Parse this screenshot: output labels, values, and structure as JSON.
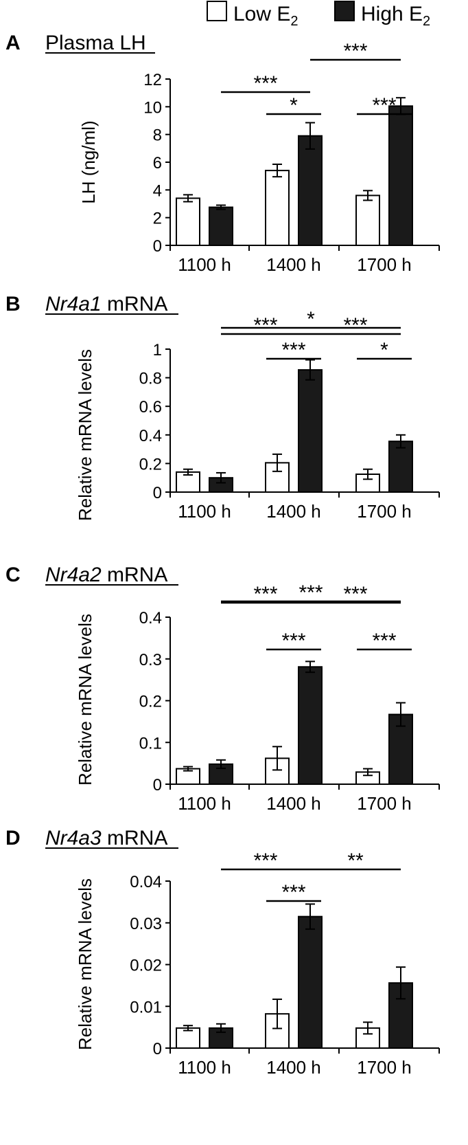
{
  "legend": {
    "low_label": "Low E",
    "high_label": "High E",
    "subscript": "2",
    "low_color": "#ffffff",
    "high_color": "#1a1a1a"
  },
  "chart_data": [
    {
      "type": "bar",
      "panel_letter": "A",
      "title": "Plasma LH",
      "title_gene": "",
      "ylabel": "LH (ng/ml)",
      "ylim": [
        0,
        12
      ],
      "yticks": [
        "0",
        "2",
        "4",
        "6",
        "8",
        "10",
        "12"
      ],
      "categories": [
        "1100 h",
        "1400 h",
        "1700 h"
      ],
      "series": [
        {
          "name": "Low E2",
          "values": [
            3.4,
            5.4,
            3.6
          ],
          "errors": [
            0.25,
            0.45,
            0.35
          ]
        },
        {
          "name": "High E2",
          "values": [
            2.75,
            7.9,
            10.05
          ],
          "errors": [
            0.15,
            0.95,
            0.6
          ]
        }
      ],
      "significance": [
        {
          "label": "***",
          "from": "1400 h High E2",
          "to": "1700 h High E2",
          "level": "top"
        },
        {
          "label": "***",
          "from": "1100 h High E2",
          "to": "1400 h High E2",
          "level": "middle"
        },
        {
          "label": "*",
          "from": "1400 h Low E2",
          "to": "1400 h High E2",
          "level": "pair"
        },
        {
          "label": "***",
          "from": "1700 h Low E2",
          "to": "1700 h High E2",
          "level": "pair"
        }
      ]
    },
    {
      "type": "bar",
      "panel_letter": "B",
      "title": " mRNA",
      "title_gene": "Nr4a1",
      "ylabel": "Relative mRNA levels",
      "ylim": [
        0,
        1
      ],
      "yticks": [
        "0",
        "0.2",
        "0.4",
        "0.6",
        "0.8",
        "1"
      ],
      "categories": [
        "1100 h",
        "1400 h",
        "1700 h"
      ],
      "series": [
        {
          "name": "Low E2",
          "values": [
            0.14,
            0.205,
            0.125
          ],
          "errors": [
            0.02,
            0.06,
            0.035
          ]
        },
        {
          "name": "High E2",
          "values": [
            0.1,
            0.855,
            0.355
          ],
          "errors": [
            0.035,
            0.07,
            0.045
          ]
        }
      ],
      "significance": [
        {
          "label": "*",
          "from": "1100 h High E2",
          "to": "1700 h High E2",
          "level": "top"
        },
        {
          "label": "***",
          "from": "1100 h High E2",
          "to": "1400 h High E2",
          "level": "middle"
        },
        {
          "label": "***",
          "from": "1400 h High E2",
          "to": "1700 h High E2",
          "level": "middle"
        },
        {
          "label": "***",
          "from": "1400 h Low E2",
          "to": "1400 h High E2",
          "level": "pair"
        },
        {
          "label": "*",
          "from": "1700 h Low E2",
          "to": "1700 h High E2",
          "level": "pair"
        }
      ]
    },
    {
      "type": "bar",
      "panel_letter": "C",
      "title": " mRNA",
      "title_gene": "Nr4a2",
      "ylabel": "Relative mRNA levels",
      "ylim": [
        0,
        0.4
      ],
      "yticks": [
        "0",
        "0.1",
        "0.2",
        "0.3",
        "0.4"
      ],
      "categories": [
        "1100 h",
        "1400 h",
        "1700 h"
      ],
      "series": [
        {
          "name": "Low E2",
          "values": [
            0.037,
            0.062,
            0.029
          ],
          "errors": [
            0.005,
            0.028,
            0.008
          ]
        },
        {
          "name": "High E2",
          "values": [
            0.048,
            0.281,
            0.167
          ],
          "errors": [
            0.01,
            0.013,
            0.028
          ]
        }
      ],
      "significance": [
        {
          "label": "***",
          "from": "1100 h High E2",
          "to": "1700 h High E2",
          "level": "top"
        },
        {
          "label": "***",
          "from": "1100 h High E2",
          "to": "1400 h High E2",
          "level": "middle"
        },
        {
          "label": "***",
          "from": "1400 h High E2",
          "to": "1700 h High E2",
          "level": "middle"
        },
        {
          "label": "***",
          "from": "1400 h Low E2",
          "to": "1400 h High E2",
          "level": "pair"
        },
        {
          "label": "***",
          "from": "1700 h Low E2",
          "to": "1700 h High E2",
          "level": "pair"
        }
      ]
    },
    {
      "type": "bar",
      "panel_letter": "D",
      "title": " mRNA",
      "title_gene": "Nr4a3",
      "ylabel": "Relative mRNA levels",
      "ylim": [
        0,
        0.04
      ],
      "yticks": [
        "0",
        "0.01",
        "0.02",
        "0.03",
        "0.04"
      ],
      "categories": [
        "1100 h",
        "1400 h",
        "1700 h"
      ],
      "series": [
        {
          "name": "Low E2",
          "values": [
            0.0048,
            0.0082,
            0.0048
          ],
          "errors": [
            0.0006,
            0.0035,
            0.0014
          ]
        },
        {
          "name": "High E2",
          "values": [
            0.0048,
            0.0315,
            0.0156
          ],
          "errors": [
            0.001,
            0.003,
            0.0038
          ]
        }
      ],
      "significance": [
        {
          "label": "***",
          "from": "1100 h High E2",
          "to": "1400 h High E2",
          "level": "middle"
        },
        {
          "label": "**",
          "from": "1400 h High E2",
          "to": "1700 h High E2",
          "level": "middle"
        },
        {
          "label": "***",
          "from": "1400 h Low E2",
          "to": "1400 h High E2",
          "level": "pair"
        }
      ]
    }
  ]
}
